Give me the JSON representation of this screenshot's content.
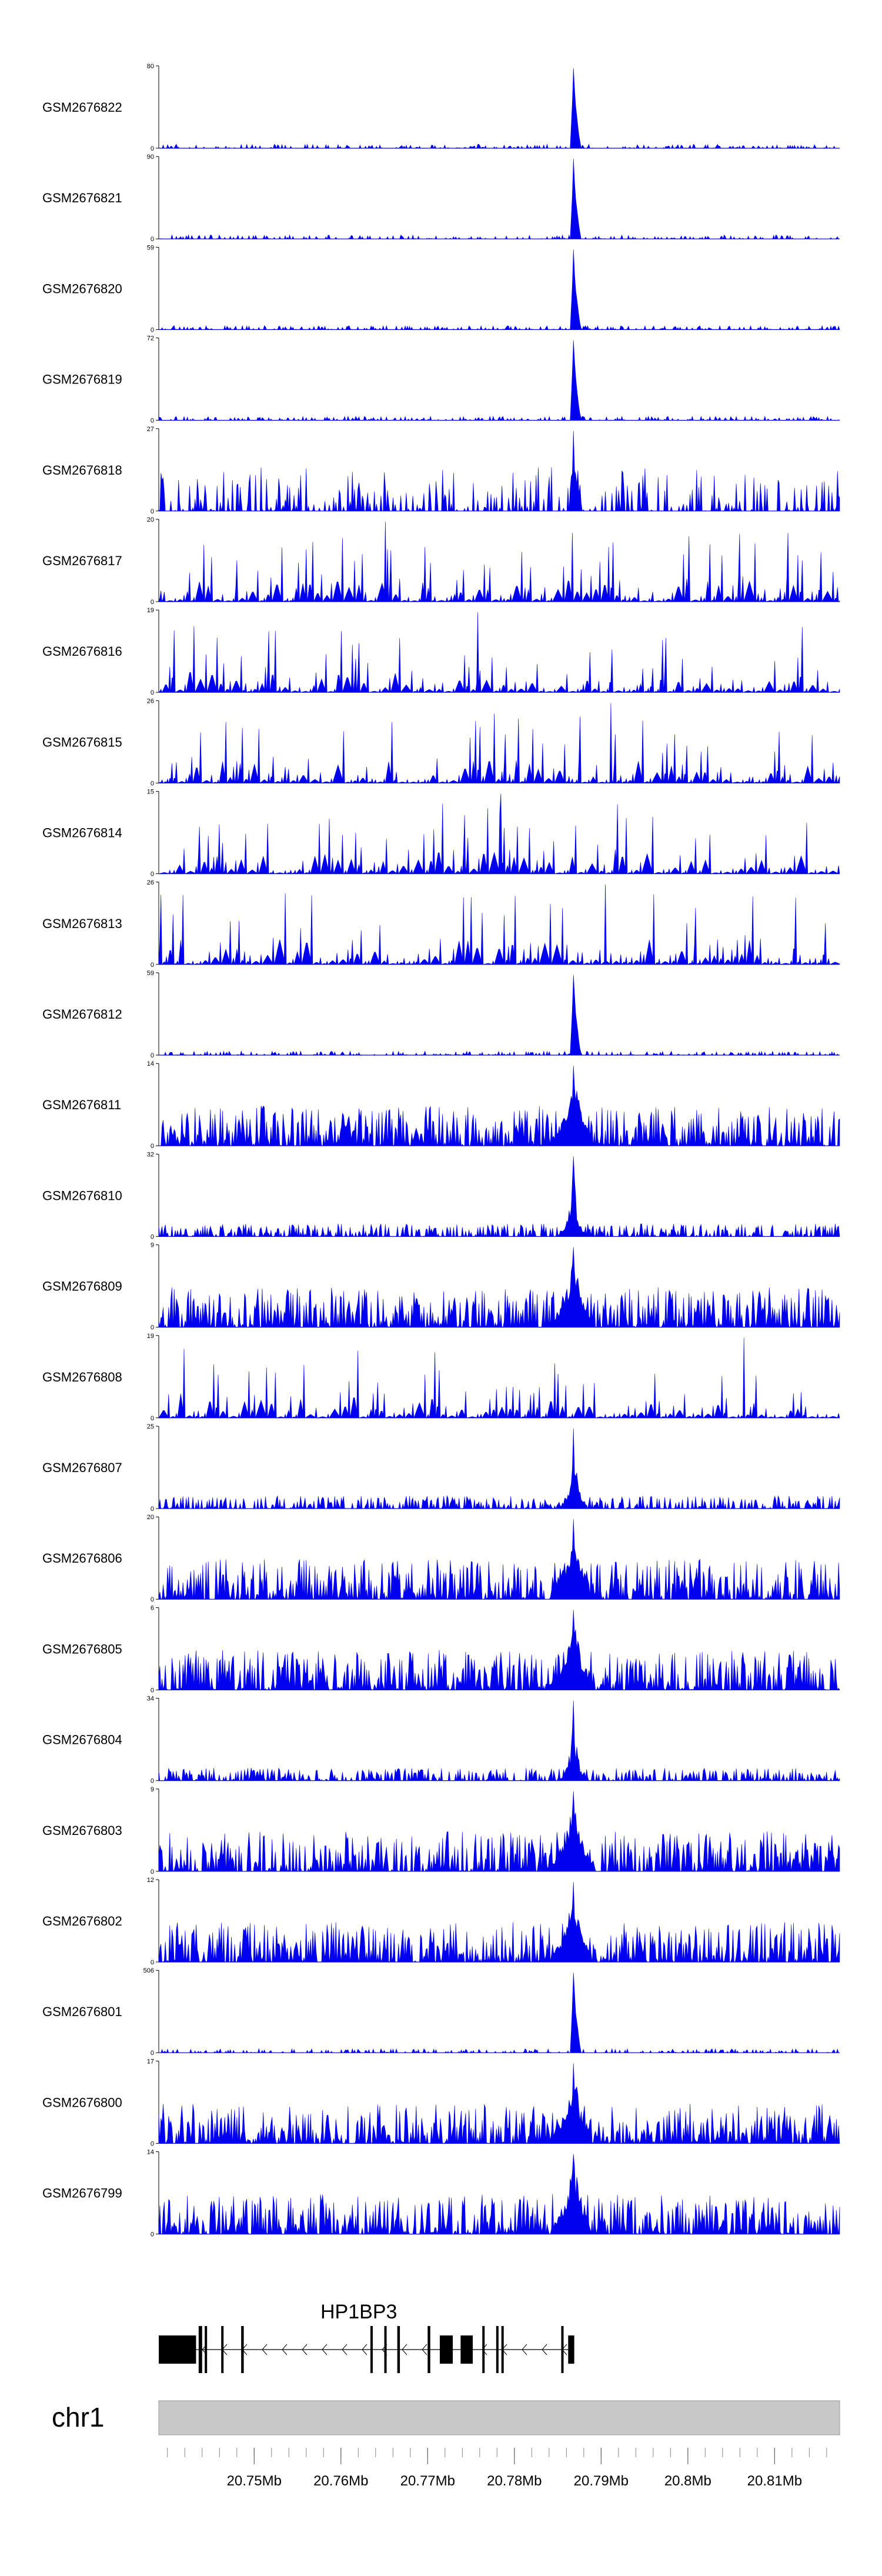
{
  "chart_data": {
    "type": "area",
    "region": {
      "chrom": "chr1",
      "start": 20739000,
      "end": 20817500
    },
    "peak_center": 20786800,
    "series": [
      {
        "name": "GSM2676822",
        "ymin": 0,
        "ymax": 80,
        "profile": "sharp"
      },
      {
        "name": "GSM2676821",
        "ymin": 0,
        "ymax": 90,
        "profile": "sharp"
      },
      {
        "name": "GSM2676820",
        "ymin": 0,
        "ymax": 59,
        "profile": "sharp"
      },
      {
        "name": "GSM2676819",
        "ymin": 0,
        "ymax": 72,
        "profile": "sharp"
      },
      {
        "name": "GSM2676818",
        "ymin": 0,
        "ymax": 27,
        "profile": "noisy"
      },
      {
        "name": "GSM2676817",
        "ymin": 0,
        "ymax": 20,
        "profile": "sparse"
      },
      {
        "name": "GSM2676816",
        "ymin": 0,
        "ymax": 19,
        "profile": "sparse"
      },
      {
        "name": "GSM2676815",
        "ymin": 0,
        "ymax": 26,
        "profile": "sparse"
      },
      {
        "name": "GSM2676814",
        "ymin": 0,
        "ymax": 15,
        "profile": "sparse"
      },
      {
        "name": "GSM2676813",
        "ymin": 0,
        "ymax": 26,
        "profile": "sparse"
      },
      {
        "name": "GSM2676812",
        "ymin": 0,
        "ymax": 59,
        "profile": "sharp"
      },
      {
        "name": "GSM2676811",
        "ymin": 0,
        "ymax": 14,
        "profile": "dense"
      },
      {
        "name": "GSM2676810",
        "ymin": 0,
        "ymax": 32,
        "profile": "medium"
      },
      {
        "name": "GSM2676809",
        "ymin": 0,
        "ymax": 9,
        "profile": "dense"
      },
      {
        "name": "GSM2676808",
        "ymin": 0,
        "ymax": 19,
        "profile": "sparse"
      },
      {
        "name": "GSM2676807",
        "ymin": 0,
        "ymax": 25,
        "profile": "medium"
      },
      {
        "name": "GSM2676806",
        "ymin": 0,
        "ymax": 20,
        "profile": "dense"
      },
      {
        "name": "GSM2676805",
        "ymin": 0,
        "ymax": 6,
        "profile": "dense"
      },
      {
        "name": "GSM2676804",
        "ymin": 0,
        "ymax": 34,
        "profile": "medium"
      },
      {
        "name": "GSM2676803",
        "ymin": 0,
        "ymax": 9,
        "profile": "dense"
      },
      {
        "name": "GSM2676802",
        "ymin": 0,
        "ymax": 12,
        "profile": "dense"
      },
      {
        "name": "GSM2676801",
        "ymin": 0,
        "ymax": 506,
        "profile": "sharp"
      },
      {
        "name": "GSM2676800",
        "ymin": 0,
        "ymax": 17,
        "profile": "dense"
      },
      {
        "name": "GSM2676799",
        "ymin": 0,
        "ymax": 14,
        "profile": "dense"
      }
    ],
    "gene": {
      "name": "HP1BP3",
      "strand": "-",
      "start": 20739000,
      "end": 20786900,
      "exons": [
        [
          20739000,
          20743300
        ],
        [
          20743600,
          20744000
        ],
        [
          20744300,
          20744550
        ],
        [
          20746200,
          20746400
        ],
        [
          20748500,
          20748800
        ],
        [
          20763400,
          20763600
        ],
        [
          20765000,
          20765250
        ],
        [
          20766500,
          20766800
        ],
        [
          20770000,
          20770300
        ],
        [
          20771400,
          20772900
        ],
        [
          20773800,
          20775200
        ],
        [
          20776300,
          20776550
        ],
        [
          20777900,
          20778150
        ],
        [
          20778500,
          20778750
        ],
        [
          20785400,
          20785650
        ],
        [
          20786200,
          20786900
        ]
      ]
    },
    "ideogram": {
      "label": "chr1"
    },
    "x_ticks": [
      {
        "pos": 20750000,
        "label": "20.75Mb"
      },
      {
        "pos": 20760000,
        "label": "20.76Mb"
      },
      {
        "pos": 20770000,
        "label": "20.77Mb"
      },
      {
        "pos": 20780000,
        "label": "20.78Mb"
      },
      {
        "pos": 20790000,
        "label": "20.79Mb"
      },
      {
        "pos": 20800000,
        "label": "20.8Mb"
      },
      {
        "pos": 20810000,
        "label": "20.81Mb"
      }
    ],
    "colors": {
      "signal": "#0000ee",
      "ideogram": "#c8c8c8",
      "axis": "#000000"
    }
  }
}
